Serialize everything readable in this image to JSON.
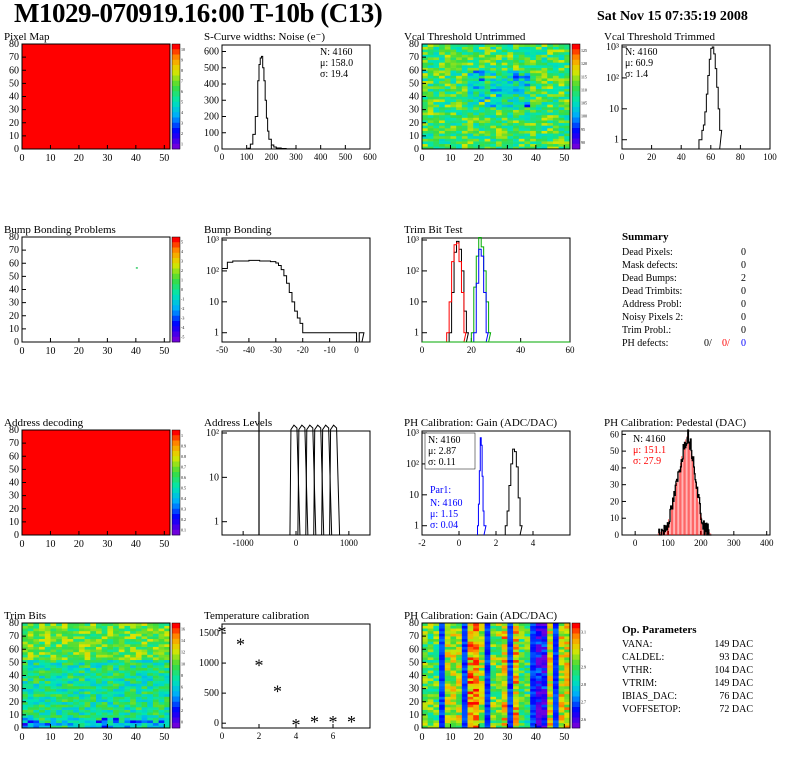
{
  "header": {
    "title": "M1029-070919.16:00 T-10b (C13)",
    "date": "Sat Nov 15 07:35:19 2008"
  },
  "chart_data": [
    {
      "id": "pixel-map",
      "type": "heatmap",
      "title": "Pixel Map",
      "x_ticks": [
        0,
        10,
        20,
        30,
        40,
        50
      ],
      "y_ticks": [
        0,
        10,
        20,
        30,
        40,
        50,
        60,
        70,
        80
      ],
      "fill": "#ff0000",
      "palette_ticks": [
        "10",
        "9",
        "8",
        "7",
        "6",
        "5",
        "4",
        "3",
        "2",
        "1"
      ]
    },
    {
      "id": "noise",
      "type": "line",
      "title": "S-Curve widths: Noise (e⁻)",
      "x_ticks": [
        0,
        100,
        200,
        300,
        400,
        500,
        600
      ],
      "y_ticks": [
        0,
        100,
        200,
        300,
        400,
        500,
        600
      ],
      "xlim": [
        0,
        600
      ],
      "ylim": [
        0,
        640
      ],
      "stats": [
        "N: 4160",
        "μ: 158.0",
        "σ: 19.4"
      ],
      "x": [
        90,
        105,
        115,
        125,
        135,
        145,
        150,
        155,
        160,
        165,
        170,
        175,
        180,
        185,
        190,
        200,
        210,
        220,
        240,
        260,
        300
      ],
      "y": [
        0,
        5,
        30,
        90,
        200,
        420,
        520,
        560,
        570,
        500,
        420,
        300,
        190,
        110,
        60,
        25,
        12,
        6,
        3,
        1,
        0
      ]
    },
    {
      "id": "vcal-untrimmed",
      "type": "heatmap",
      "title": "Vcal Threshold Untrimmed",
      "x_ticks": [
        0,
        10,
        20,
        30,
        40,
        50
      ],
      "y_ticks": [
        0,
        10,
        20,
        30,
        40,
        50,
        60,
        70,
        80
      ],
      "palette_ticks": [
        "125",
        "120",
        "115",
        "110",
        "105",
        "100",
        "95",
        "90"
      ]
    },
    {
      "id": "vcal-trimmed",
      "type": "line",
      "title": "Vcal Threshold Trimmed",
      "log": true,
      "x_ticks": [
        0,
        20,
        40,
        60,
        80,
        100
      ],
      "xlim": [
        0,
        100
      ],
      "stats": [
        "N: 4160",
        "μ: 60.9",
        "σ:  1.4"
      ],
      "x": [
        52,
        54,
        55,
        56,
        57,
        58,
        59,
        60,
        61,
        62,
        63,
        64,
        65,
        66
      ],
      "y": [
        1,
        2,
        3,
        8,
        30,
        120,
        400,
        900,
        1000,
        600,
        200,
        50,
        10,
        2
      ]
    },
    {
      "id": "bump-map",
      "type": "heatmap",
      "title": "Bump Bonding Problems",
      "x_ticks": [
        0,
        10,
        20,
        30,
        40,
        50
      ],
      "y_ticks": [
        0,
        10,
        20,
        30,
        40,
        50,
        60,
        70,
        80
      ],
      "palette_ticks": [
        "5",
        "4",
        "3",
        "2",
        "1",
        "0",
        "-1",
        "-2",
        "-3",
        "-4",
        "-5"
      ]
    },
    {
      "id": "bump-bonding",
      "type": "line",
      "title": "Bump Bonding",
      "log": true,
      "x_ticks": [
        -50,
        -40,
        -30,
        -20,
        -10,
        0
      ],
      "xlim": [
        -50,
        5
      ],
      "x": [
        -50,
        -48,
        -46,
        -40,
        -36,
        -32,
        -30,
        -29,
        -28,
        -27,
        -26,
        -25,
        -24,
        -23,
        -22,
        -21,
        -20,
        0,
        1,
        2
      ],
      "y": [
        120,
        190,
        210,
        220,
        210,
        200,
        180,
        150,
        110,
        70,
        40,
        20,
        10,
        5,
        3,
        2,
        1,
        0,
        1,
        1
      ]
    },
    {
      "id": "trim-bit",
      "type": "line",
      "title": "Trim Bit Test",
      "log": true,
      "x_ticks": [
        0,
        20,
        40,
        60
      ],
      "xlim": [
        0,
        60
      ],
      "series": [
        {
          "color": "#000000",
          "x": [
            11,
            12,
            13,
            14,
            15,
            16,
            17,
            18
          ],
          "y": [
            1,
            20,
            400,
            900,
            500,
            100,
            5,
            1
          ]
        },
        {
          "color": "#ff0000",
          "x": [
            10,
            11,
            12,
            13,
            14,
            15,
            16,
            17
          ],
          "y": [
            1,
            10,
            200,
            700,
            800,
            200,
            20,
            1
          ]
        },
        {
          "color": "#00aa00",
          "x": [
            20,
            21,
            22,
            23,
            24,
            25,
            26,
            27
          ],
          "y": [
            1,
            30,
            300,
            1200,
            600,
            100,
            10,
            1
          ]
        },
        {
          "color": "#0000ff",
          "x": [
            21,
            22,
            23,
            24,
            25,
            26
          ],
          "y": [
            1,
            40,
            500,
            300,
            20,
            1
          ]
        }
      ]
    },
    {
      "id": "summary",
      "type": "table",
      "title": "Summary",
      "rows": [
        {
          "label": "Dead Pixels:",
          "value": "0"
        },
        {
          "label": "Mask defects:",
          "value": "0"
        },
        {
          "label": "Dead Bumps:",
          "value": "2"
        },
        {
          "label": "Dead Trimbits:",
          "value": "0"
        },
        {
          "label": "Address Probl:",
          "value": "0"
        },
        {
          "label": "Noisy Pixels 2:",
          "value": "0"
        },
        {
          "label": "Trim Probl.:",
          "value": "0"
        }
      ],
      "ph_defects": {
        "label": "PH defects:",
        "v1": "0/",
        "v2": "0/",
        "v3": "0"
      }
    },
    {
      "id": "address-map",
      "type": "heatmap",
      "title": "Address decoding",
      "x_ticks": [
        0,
        10,
        20,
        30,
        40,
        50
      ],
      "y_ticks": [
        0,
        10,
        20,
        30,
        40,
        50,
        60,
        70,
        80
      ],
      "fill": "#ff0000",
      "palette_ticks": [
        "1",
        "0.9",
        "0.8",
        "0.7",
        "0.6",
        "0.5",
        "0.4",
        "0.3",
        "0.2",
        "0.1"
      ]
    },
    {
      "id": "address-levels",
      "type": "line",
      "title": "Address Levels",
      "log": true,
      "x_ticks": [
        -1000,
        0,
        1000
      ],
      "xlim": [
        -1400,
        1400
      ],
      "peaks": [
        -700,
        -20,
        130,
        280,
        430,
        580,
        730
      ]
    },
    {
      "id": "ph-gain",
      "type": "line",
      "title": "PH Calibration: Gain (ADC/DAC)",
      "log": true,
      "x_ticks": [
        -2,
        0,
        2,
        4
      ],
      "xlim": [
        -2,
        6
      ],
      "stats": [
        "N: 4160",
        "μ: 2.87",
        "σ: 0.11"
      ],
      "stats2_title": "Par1:",
      "stats2": [
        "N: 4160",
        "μ: 1.15",
        "σ: 0.04"
      ],
      "series": [
        {
          "color": "#000000",
          "x": [
            2.5,
            2.6,
            2.7,
            2.8,
            2.9,
            3.0,
            3.1,
            3.2,
            3.3
          ],
          "y": [
            1,
            3,
            20,
            100,
            300,
            250,
            80,
            8,
            1
          ]
        },
        {
          "color": "#0000ff",
          "x": [
            1.0,
            1.05,
            1.1,
            1.15,
            1.2,
            1.25,
            1.3,
            1.35
          ],
          "y": [
            1,
            5,
            60,
            700,
            400,
            40,
            3,
            1
          ]
        }
      ]
    },
    {
      "id": "ph-pedestal",
      "type": "line",
      "title": "PH Calibration: Pedestal (DAC)",
      "x_ticks": [
        0,
        100,
        200,
        300,
        400
      ],
      "y_ticks": [
        0,
        10,
        20,
        30,
        40,
        50,
        60
      ],
      "xlim": [
        -40,
        410
      ],
      "ylim": [
        0,
        62
      ],
      "stats": [
        "N: 4160",
        "μ: 151.1",
        "σ: 27.9"
      ],
      "x": [
        70,
        90,
        100,
        110,
        120,
        130,
        140,
        150,
        160,
        170,
        180,
        190,
        200,
        210,
        230
      ],
      "y": [
        1,
        3,
        8,
        15,
        25,
        35,
        45,
        55,
        60,
        52,
        40,
        25,
        12,
        4,
        1
      ]
    },
    {
      "id": "trim-bits-map",
      "type": "heatmap",
      "title": "Trim Bits",
      "x_ticks": [
        0,
        10,
        20,
        30,
        40,
        50
      ],
      "y_ticks": [
        0,
        10,
        20,
        30,
        40,
        50,
        60,
        70,
        80
      ],
      "palette_ticks": [
        "16",
        "14",
        "12",
        "10",
        "8",
        "6",
        "4",
        "2",
        "0"
      ]
    },
    {
      "id": "temperature",
      "type": "scatter",
      "title": "Temperature calibration",
      "x_ticks": [
        0,
        2,
        4,
        6
      ],
      "y_ticks": [
        0,
        500,
        1000,
        1500
      ],
      "xlim": [
        0,
        8
      ],
      "ylim": [
        -80,
        1650
      ],
      "x": [
        0,
        1,
        2,
        3,
        4,
        5,
        6,
        7
      ],
      "y": [
        1520,
        1310,
        960,
        530,
        -30,
        20,
        20,
        20
      ]
    },
    {
      "id": "ph-gain-map",
      "type": "heatmap",
      "title": "PH Calibration: Gain (ADC/DAC)",
      "x_ticks": [
        0,
        10,
        20,
        30,
        40,
        50
      ],
      "y_ticks": [
        0,
        10,
        20,
        30,
        40,
        50,
        60,
        70,
        80
      ],
      "palette_ticks": [
        "3.1",
        "3",
        "2.9",
        "2.8",
        "2.7",
        "2.6"
      ]
    },
    {
      "id": "op-params",
      "type": "table",
      "title": "Op. Parameters",
      "rows": [
        {
          "label": "VANA:",
          "value": "149 DAC"
        },
        {
          "label": "CALDEL:",
          "value": "93 DAC"
        },
        {
          "label": "VTHR:",
          "value": "104 DAC"
        },
        {
          "label": "VTRIM:",
          "value": "149 DAC"
        },
        {
          "label": "IBIAS_DAC:",
          "value": "76 DAC"
        },
        {
          "label": "VOFFSETOP:",
          "value": "72 DAC"
        }
      ]
    }
  ]
}
